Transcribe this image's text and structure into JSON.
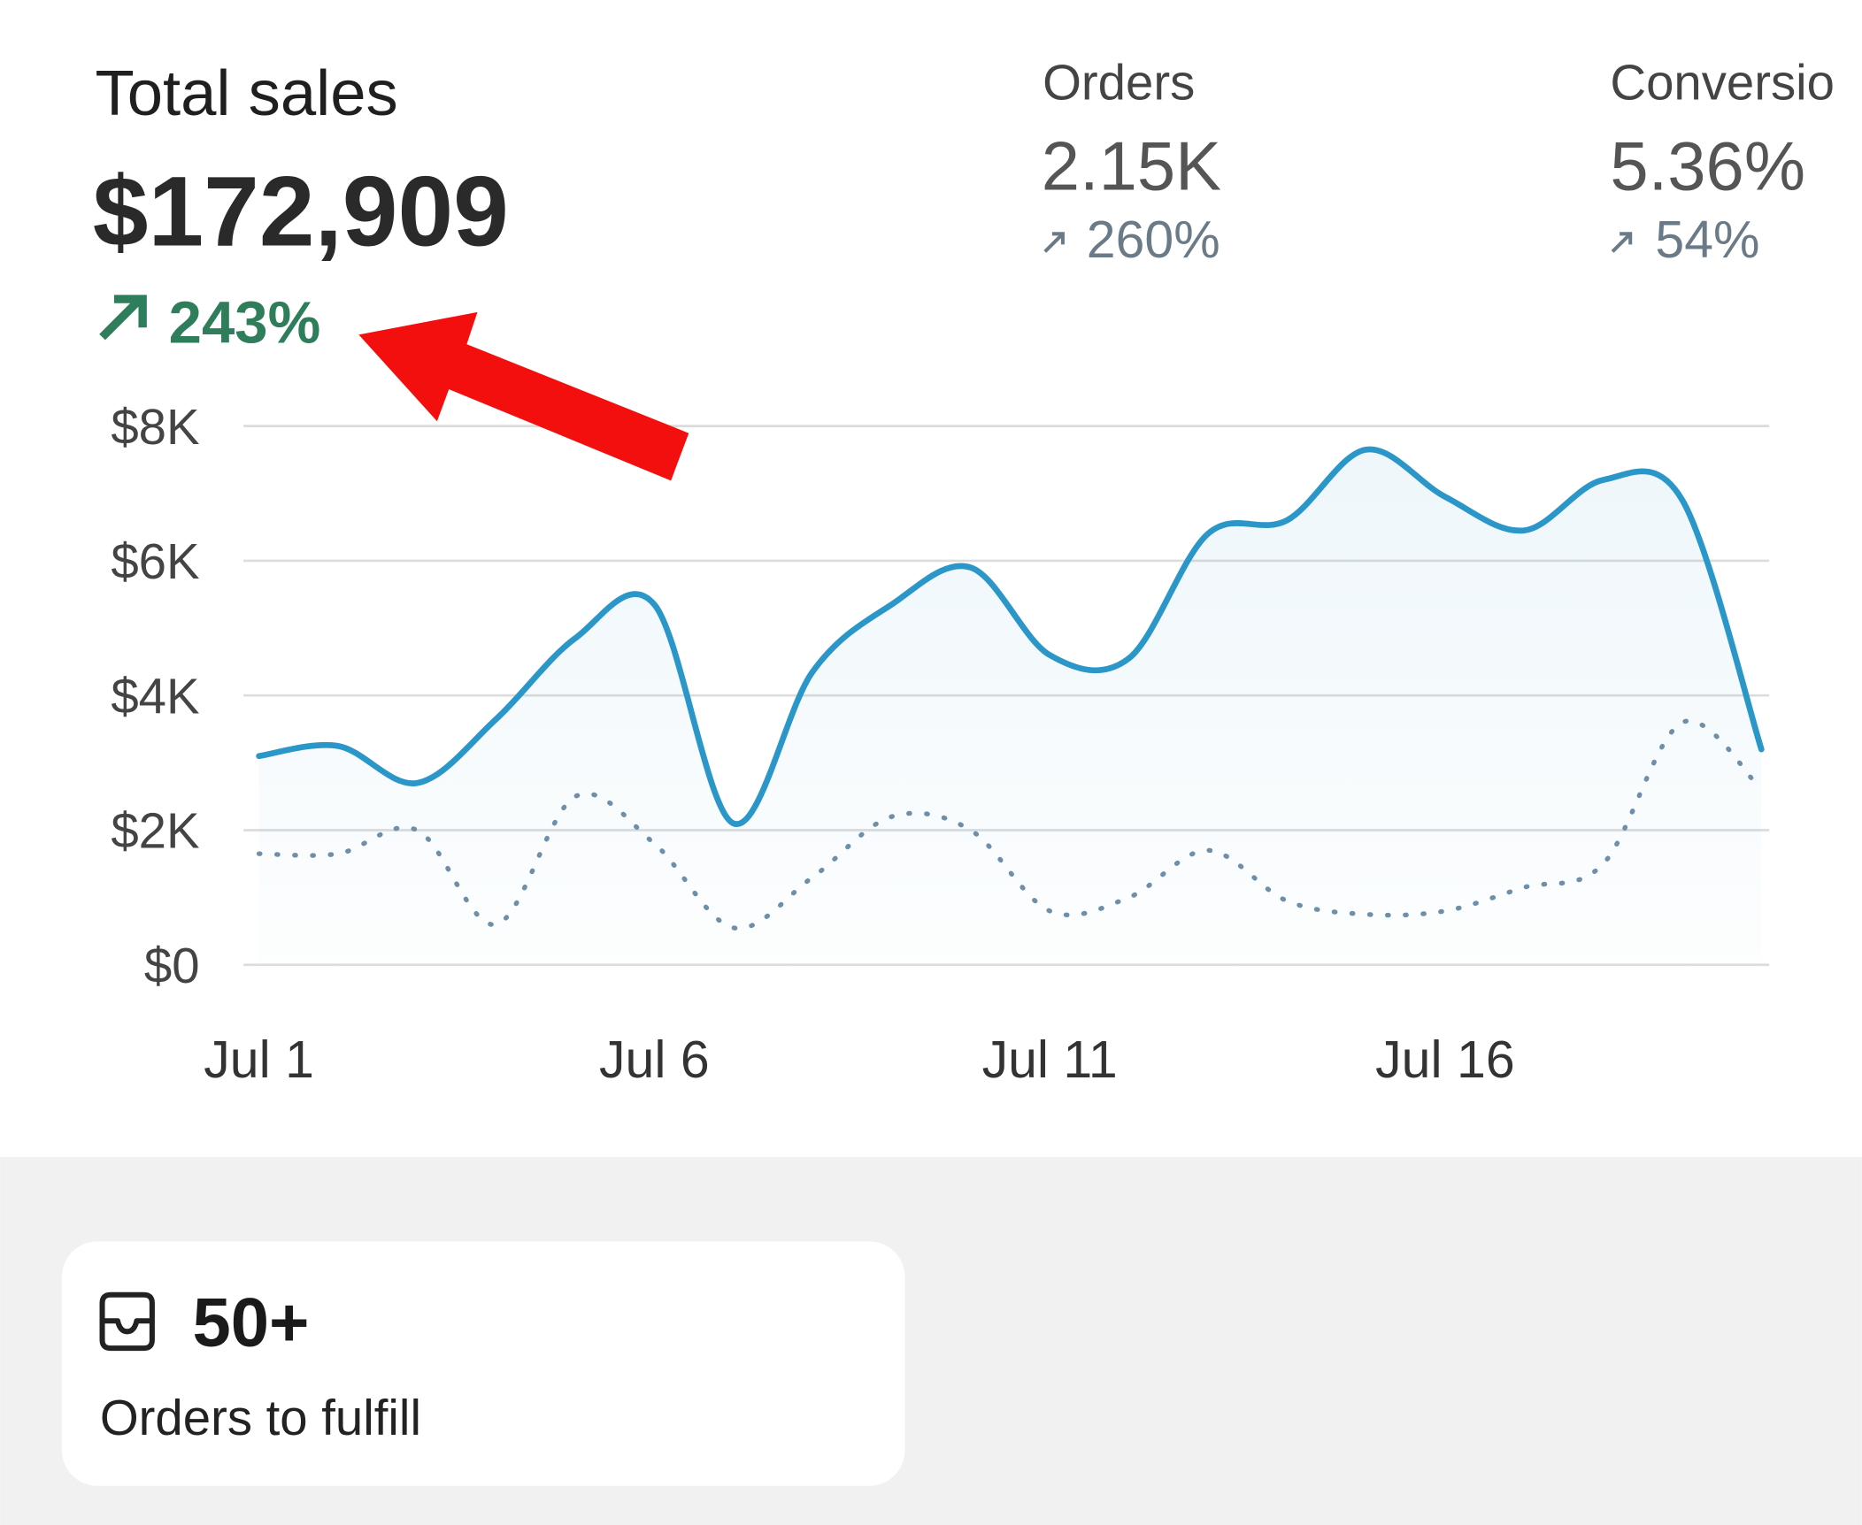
{
  "header": {
    "title": "Total sales",
    "value": "$172,909",
    "change": "243%"
  },
  "metrics": [
    {
      "label": "Orders",
      "value": "2.15K",
      "change": "260%"
    },
    {
      "label": "Conversio",
      "value": "5.36%",
      "change": "54%"
    }
  ],
  "chart_data": {
    "type": "line",
    "categories": [
      "Jul 1",
      null,
      null,
      null,
      null,
      "Jul 6",
      null,
      null,
      null,
      null,
      "Jul 11",
      null,
      null,
      null,
      null,
      "Jul 16",
      null,
      null,
      null,
      null
    ],
    "series": [
      {
        "color": "#2b96c8",
        "style": "solid",
        "values": [
          3100,
          3250,
          2700,
          3650,
          4850,
          5350,
          2100,
          4350,
          5350,
          5900,
          4600,
          4550,
          6400,
          6600,
          7650,
          6950,
          6450,
          7200,
          6900,
          3200
        ]
      },
      {
        "color": "#6f8fa8",
        "style": "dotted",
        "values": [
          1650,
          1650,
          2000,
          600,
          2500,
          1800,
          550,
          1300,
          2200,
          2000,
          800,
          1000,
          1700,
          950,
          750,
          800,
          1150,
          1500,
          3600,
          2600
        ]
      }
    ],
    "ylim": [
      0,
      8000
    ],
    "yticks": [
      {
        "value": 0,
        "label": "$0"
      },
      {
        "value": 2000,
        "label": "$2K"
      },
      {
        "value": 4000,
        "label": "$4K"
      },
      {
        "value": 6000,
        "label": "$6K"
      },
      {
        "value": 8000,
        "label": "$8K"
      }
    ],
    "grid": true
  },
  "card": {
    "value": "50+",
    "label": "Orders to fulfill"
  }
}
